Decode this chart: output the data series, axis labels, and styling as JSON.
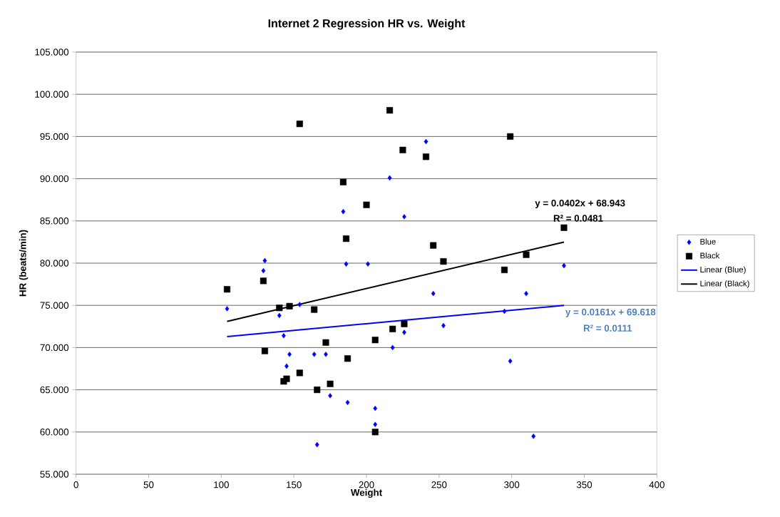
{
  "chart_data": {
    "type": "scatter",
    "title": "Internet 2 Regression HR vs. Weight",
    "xlabel": "Weight",
    "ylabel": "HR (beats/min)",
    "xlim": [
      0,
      400
    ],
    "xticks": [
      0,
      50,
      100,
      150,
      200,
      250,
      300,
      350,
      400
    ],
    "ylim": [
      55,
      105
    ],
    "yticks": [
      {
        "value": 55,
        "label": "55.000"
      },
      {
        "value": 60,
        "label": "60.000"
      },
      {
        "value": 65,
        "label": "65.000"
      },
      {
        "value": 70,
        "label": "70.000"
      },
      {
        "value": 75,
        "label": "75.000"
      },
      {
        "value": 80,
        "label": "80.000"
      },
      {
        "value": 85,
        "label": "85.000"
      },
      {
        "value": 90,
        "label": "90.000"
      },
      {
        "value": 95,
        "label": "95.000"
      },
      {
        "value": 100,
        "label": "100.000"
      },
      {
        "value": 105,
        "label": "105.000"
      }
    ],
    "grid": "y",
    "legend": "right",
    "series": [
      {
        "name": "Blue",
        "color": "#0000ff",
        "marker": "diamond",
        "x": [
          104,
          129,
          130,
          140,
          143,
          145,
          147,
          154,
          164,
          166,
          172,
          175,
          184,
          186,
          187,
          201,
          206,
          206,
          216,
          218,
          226,
          226,
          241,
          246,
          253,
          295,
          299,
          310,
          315,
          336
        ],
        "values": [
          74.6,
          79.1,
          80.3,
          73.8,
          71.4,
          67.8,
          69.2,
          75.1,
          69.2,
          58.5,
          69.2,
          64.3,
          86.1,
          79.9,
          63.5,
          79.9,
          60.9,
          62.8,
          90.1,
          70.0,
          85.5,
          71.8,
          94.4,
          76.4,
          72.6,
          74.3,
          68.4,
          76.4,
          59.5,
          79.7
        ]
      },
      {
        "name": "Black",
        "color": "#000000",
        "marker": "square",
        "x": [
          104,
          129,
          130,
          140,
          143,
          145,
          147,
          154,
          154,
          164,
          166,
          172,
          175,
          184,
          186,
          187,
          200,
          206,
          206,
          216,
          218,
          225,
          226,
          241,
          246,
          253,
          295,
          299,
          310,
          336
        ],
        "values": [
          76.9,
          77.9,
          69.6,
          74.7,
          66.0,
          66.3,
          74.9,
          67.0,
          96.5,
          74.5,
          65.0,
          70.6,
          65.7,
          89.6,
          82.9,
          68.7,
          86.9,
          60.0,
          70.9,
          98.1,
          72.2,
          93.4,
          72.8,
          92.6,
          82.1,
          80.2,
          79.2,
          95.0,
          81.0,
          84.2
        ]
      },
      {
        "name": "Linear (Blue)",
        "type": "line",
        "color": "#0000ff",
        "marker": "none",
        "x": [
          104,
          336
        ],
        "values": [
          71.3,
          75.0
        ]
      },
      {
        "name": "Linear (Black)",
        "type": "line",
        "color": "#000000",
        "marker": "none",
        "x": [
          104,
          336
        ],
        "values": [
          73.1,
          82.5
        ]
      }
    ],
    "annotations": [
      "y = 0.0402x + 68.943",
      "R² = 0.0481",
      "y = 0.0161x + 69.618",
      "R² = 0.0111"
    ]
  }
}
